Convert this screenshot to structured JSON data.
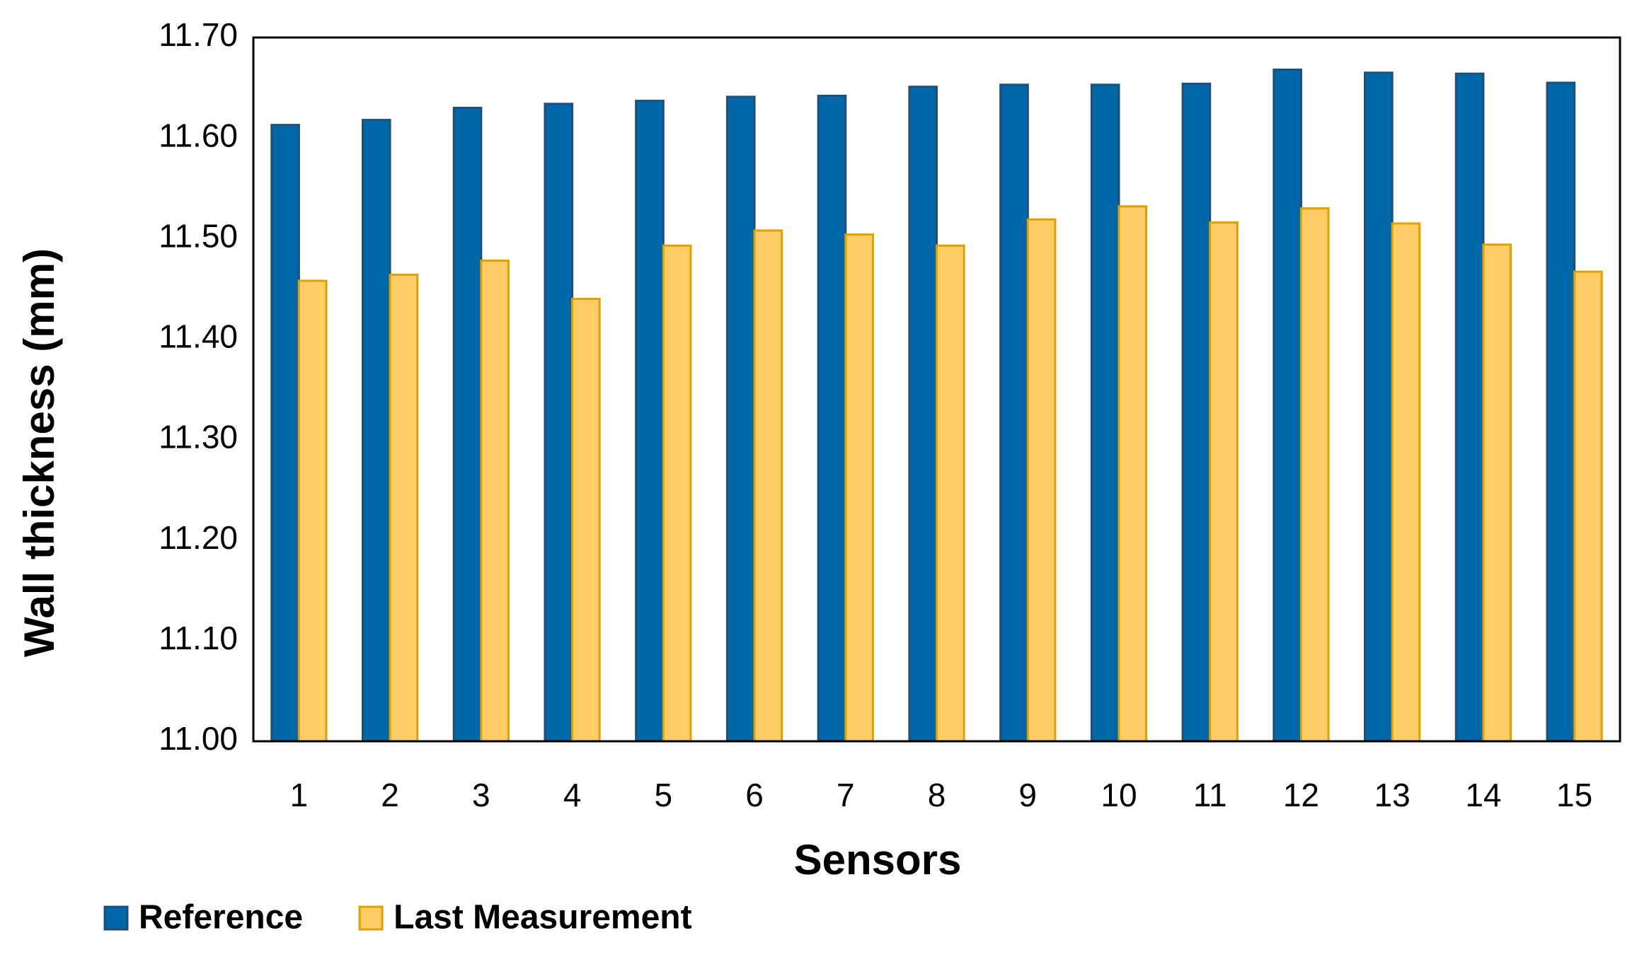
{
  "chart_data": {
    "type": "bar",
    "x_label": "Sensors",
    "y_label": "Wall thickness (mm)",
    "categories": [
      "1",
      "2",
      "3",
      "4",
      "5",
      "6",
      "7",
      "8",
      "9",
      "10",
      "11",
      "12",
      "13",
      "14",
      "15"
    ],
    "series": [
      {
        "name": "Reference",
        "color": "#0068a8",
        "edge": "#1f4e79",
        "values": [
          11.613,
          11.618,
          11.63,
          11.634,
          11.637,
          11.641,
          11.642,
          11.651,
          11.653,
          11.653,
          11.654,
          11.668,
          11.665,
          11.664,
          11.655
        ]
      },
      {
        "name": "Last Measurement",
        "color": "#ffcc66",
        "edge": "#e0a000",
        "values": [
          11.458,
          11.464,
          11.478,
          11.44,
          11.493,
          11.508,
          11.504,
          11.493,
          11.519,
          11.532,
          11.516,
          11.53,
          11.515,
          11.494,
          11.467
        ]
      }
    ],
    "ylim": [
      11.0,
      11.7
    ],
    "yticks": [
      {
        "value": 11.0,
        "label": "11.00"
      },
      {
        "value": 11.1,
        "label": "11.10"
      },
      {
        "value": 11.2,
        "label": "11.20"
      },
      {
        "value": 11.3,
        "label": "11.30"
      },
      {
        "value": 11.4,
        "label": "11.40"
      },
      {
        "value": 11.5,
        "label": "11.50"
      },
      {
        "value": 11.6,
        "label": "11.60"
      },
      {
        "value": 11.7,
        "label": "11.70"
      }
    ],
    "grid": false,
    "legend": "bottom-left"
  }
}
